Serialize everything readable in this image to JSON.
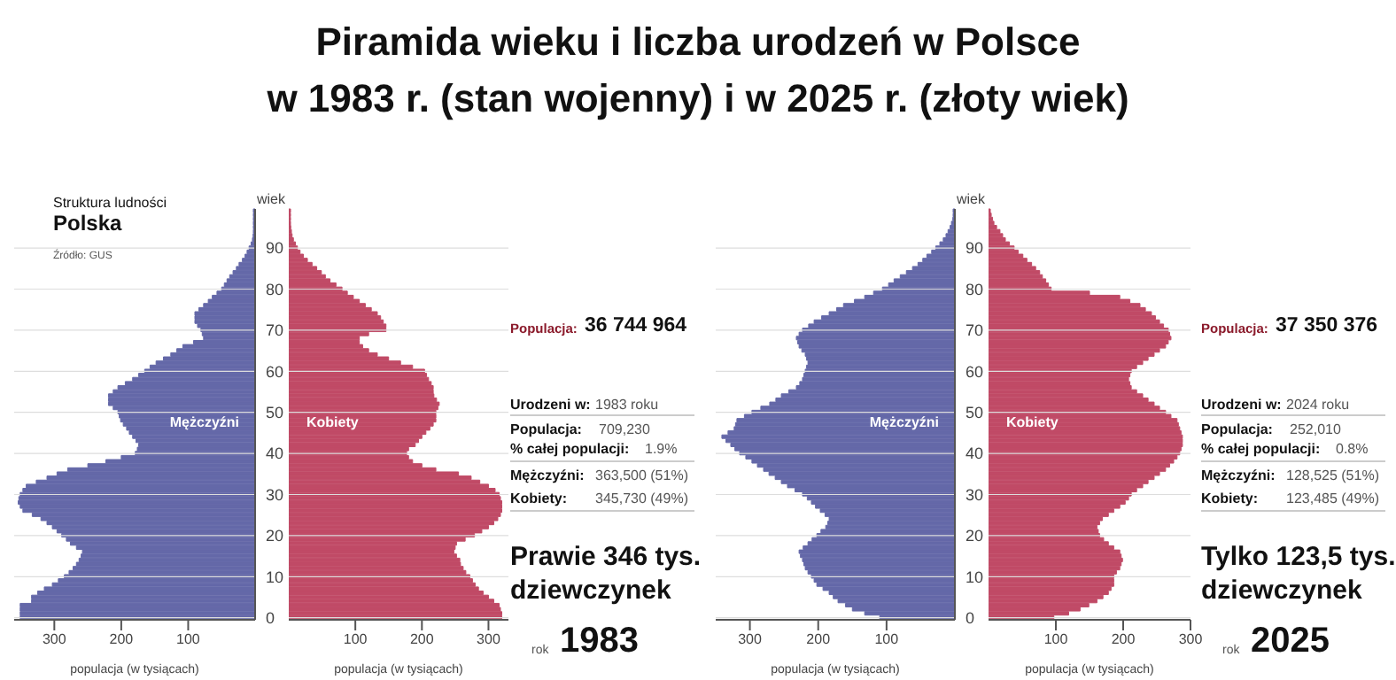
{
  "chart_data": [
    {
      "type": "bar",
      "orientation": "horizontal",
      "title": "Piramida wieku i liczba urodzeń w Polsce\nw 1983 r. (stan wojenny) i w 2025 r. (złoty wiek)",
      "xlabel": "populacja (w tysiącach)",
      "ylabel": "wiek",
      "xlim": [
        360,
        0
      ],
      "xticks": [
        300,
        200,
        100
      ],
      "grid": "y",
      "annotations": [
        "Struktura ludności",
        "Polska",
        "Źródło: GUS"
      ],
      "categories": [
        null,
        null,
        null,
        null,
        null,
        null,
        null,
        null,
        null,
        "90",
        null,
        null,
        null,
        null,
        null,
        null,
        null,
        null,
        null,
        "80",
        null,
        null,
        null,
        null,
        null,
        null,
        null,
        null,
        null,
        "70",
        null,
        null,
        null,
        null,
        null,
        null,
        null,
        null,
        null,
        "60",
        null,
        null,
        null,
        null,
        null,
        null,
        null,
        null,
        null,
        "50",
        null,
        null,
        null,
        null,
        null,
        null,
        null,
        null,
        null,
        "40",
        null,
        null,
        null,
        null,
        null,
        null,
        null,
        null,
        null,
        "30",
        null,
        null,
        null,
        null,
        null,
        null,
        null,
        null,
        null,
        "20",
        null,
        null,
        null,
        null,
        null,
        null,
        null,
        null,
        null,
        "10",
        null,
        null,
        null,
        null,
        null,
        null,
        null,
        null,
        null,
        "0"
      ],
      "series": [
        {
          "name": "Mężczyźni",
          "color": "#6468a8",
          "values": [
            1,
            1,
            1,
            1,
            1,
            2,
            3,
            4,
            6,
            9,
            12,
            15,
            19,
            24,
            28,
            33,
            38,
            42,
            46,
            50,
            57,
            64,
            70,
            77,
            84,
            90,
            90,
            90,
            86,
            81,
            79,
            77,
            92,
            108,
            117,
            126,
            137,
            148,
            157,
            165,
            174,
            183,
            194,
            205,
            212,
            219,
            219,
            219,
            212,
            205,
            203,
            201,
            197,
            192,
            188,
            183,
            178,
            174,
            176,
            179,
            200,
            223,
            250,
            280,
            296,
            311,
            327,
            342,
            347,
            351,
            353,
            354,
            351,
            347,
            333,
            320,
            311,
            303,
            296,
            289,
            282,
            276,
            267,
            258,
            260,
            263,
            267,
            272,
            278,
            285,
            294,
            303,
            315,
            325,
            334,
            334,
            351,
            351,
            351,
            351
          ]
        }
      ]
    },
    {
      "type": "bar",
      "orientation": "horizontal",
      "xlabel": "populacja (w tysiącach)",
      "xlim": [
        0,
        330
      ],
      "xticks": [
        100,
        200,
        300
      ],
      "grid": "y",
      "tick_labels": "x",
      "annotations": [
        "Populacja:",
        "36 744 964",
        "Urodzeni w:",
        "1983 roku",
        "Populacja:",
        "709,230",
        "% całej populacji:",
        "1.9%",
        "Mężczyźni:",
        "363,500 (51%)",
        "Kobiety:",
        "345,730 (49%)",
        "Prawie 346 tys. dziewczynek",
        "rok",
        "1983"
      ],
      "categories": [
        null,
        null,
        null,
        null,
        null,
        null,
        null,
        null,
        null,
        "90",
        null,
        null,
        null,
        null,
        null,
        null,
        null,
        null,
        null,
        "80",
        null,
        null,
        null,
        null,
        null,
        null,
        null,
        null,
        null,
        "70",
        null,
        null,
        null,
        null,
        null,
        null,
        null,
        null,
        null,
        "60",
        null,
        null,
        null,
        null,
        null,
        null,
        null,
        null,
        null,
        "50",
        null,
        null,
        null,
        null,
        null,
        null,
        null,
        null,
        null,
        "40",
        null,
        null,
        null,
        null,
        null,
        null,
        null,
        null,
        null,
        "30",
        null,
        null,
        null,
        null,
        null,
        null,
        null,
        null,
        null,
        "20",
        null,
        null,
        null,
        null,
        null,
        null,
        null,
        null,
        null,
        "10",
        null,
        null,
        null,
        null,
        null,
        null,
        null,
        null,
        null,
        "0"
      ],
      "series": [
        {
          "name": "Kobiety",
          "color": "#c04a66",
          "values": [
            1,
            1,
            1,
            2,
            3,
            4,
            5,
            7,
            10,
            13,
            17,
            22,
            28,
            35,
            42,
            49,
            55,
            62,
            71,
            80,
            88,
            97,
            106,
            115,
            124,
            133,
            138,
            142,
            146,
            146,
            120,
            106,
            106,
            111,
            120,
            133,
            150,
            168,
            186,
            204,
            207,
            210,
            214,
            217,
            217,
            218,
            222,
            226,
            224,
            221,
            221,
            221,
            217,
            212,
            206,
            200,
            195,
            190,
            180,
            177,
            180,
            186,
            200,
            221,
            255,
            274,
            287,
            300,
            310,
            316,
            318,
            320,
            320,
            320,
            318,
            314,
            308,
            300,
            290,
            279,
            265,
            252,
            250,
            248,
            252,
            257,
            258,
            262,
            266,
            272,
            276,
            280,
            285,
            292,
            300,
            308,
            316,
            318,
            320,
            320
          ]
        }
      ]
    },
    {
      "type": "bar",
      "orientation": "horizontal",
      "xlabel": "populacja (w tysiącach)",
      "ylabel": "wiek",
      "xlim": [
        350,
        0
      ],
      "xticks": [
        300,
        200,
        100
      ],
      "grid": "y",
      "categories": [
        null,
        null,
        null,
        null,
        null,
        null,
        null,
        null,
        null,
        "90",
        null,
        null,
        null,
        null,
        null,
        null,
        null,
        null,
        null,
        "80",
        null,
        null,
        null,
        null,
        null,
        null,
        null,
        null,
        null,
        "70",
        null,
        null,
        null,
        null,
        null,
        null,
        null,
        null,
        null,
        "60",
        null,
        null,
        null,
        null,
        null,
        null,
        null,
        null,
        null,
        "50",
        null,
        null,
        null,
        null,
        null,
        null,
        null,
        null,
        null,
        "40",
        null,
        null,
        null,
        null,
        null,
        null,
        null,
        null,
        null,
        "30",
        null,
        null,
        null,
        null,
        null,
        null,
        null,
        null,
        null,
        "20",
        null,
        null,
        null,
        null,
        null,
        null,
        null,
        null,
        null,
        "10",
        null,
        null,
        null,
        null,
        null,
        null,
        null,
        null,
        null,
        "0"
      ],
      "series": [
        {
          "name": "Mężczyźni",
          "color": "#6468a8",
          "values": [
            1,
            2,
            3,
            5,
            7,
            10,
            13,
            17,
            22,
            28,
            34,
            41,
            47,
            54,
            62,
            71,
            80,
            89,
            97,
            106,
            119,
            132,
            147,
            163,
            173,
            184,
            195,
            206,
            214,
            223,
            228,
            232,
            230,
            228,
            224,
            219,
            217,
            215,
            217,
            219,
            221,
            223,
            227,
            232,
            243,
            254,
            262,
            271,
            284,
            297,
            308,
            319,
            321,
            323,
            332,
            341,
            335,
            328,
            322,
            315,
            306,
            297,
            289,
            280,
            272,
            263,
            254,
            245,
            234,
            223,
            216,
            210,
            204,
            197,
            190,
            184,
            186,
            189,
            196,
            202,
            209,
            215,
            222,
            228,
            226,
            223,
            221,
            219,
            215,
            210,
            206,
            202,
            193,
            184,
            178,
            171,
            160,
            150,
            132,
            110
          ]
        }
      ]
    },
    {
      "type": "bar",
      "orientation": "horizontal",
      "xlabel": "populacja (w tysiącach)",
      "xlim": [
        0,
        300
      ],
      "xticks": [
        100,
        200,
        300
      ],
      "grid": "y",
      "tick_labels": "x",
      "annotations": [
        "Populacja:",
        "37 350 376",
        "Urodzeni w:",
        "2024 roku",
        "Populacja:",
        "252,010",
        "% całej populacji:",
        "0.8%",
        "Mężczyźni:",
        "128,525 (51%)",
        "Kobiety:",
        "123,485 (49%)",
        "Tylko 123,5 tys. dziewczynek",
        "rok",
        "2025"
      ],
      "categories": [
        null,
        null,
        null,
        null,
        null,
        null,
        null,
        null,
        null,
        "90",
        null,
        null,
        null,
        null,
        null,
        null,
        null,
        null,
        null,
        "80",
        null,
        null,
        null,
        null,
        null,
        null,
        null,
        null,
        null,
        "70",
        null,
        null,
        null,
        null,
        null,
        null,
        null,
        null,
        null,
        "60",
        null,
        null,
        null,
        null,
        null,
        null,
        null,
        null,
        null,
        "50",
        null,
        null,
        null,
        null,
        null,
        null,
        null,
        null,
        null,
        "40",
        null,
        null,
        null,
        null,
        null,
        null,
        null,
        null,
        null,
        "30",
        null,
        null,
        null,
        null,
        null,
        null,
        null,
        null,
        null,
        "20",
        null,
        null,
        null,
        null,
        null,
        null,
        null,
        null,
        null,
        "10",
        null,
        null,
        null,
        null,
        null,
        null,
        null,
        null,
        null,
        "0"
      ],
      "series": [
        {
          "name": "Kobiety",
          "color": "#c04a66",
          "values": [
            2,
            4,
            6,
            8,
            12,
            17,
            21,
            25,
            31,
            38,
            44,
            51,
            57,
            64,
            70,
            76,
            80,
            85,
            89,
            93,
            150,
            195,
            210,
            225,
            233,
            242,
            248,
            254,
            260,
            267,
            269,
            271,
            267,
            263,
            254,
            246,
            237,
            229,
            220,
            212,
            210,
            208,
            210,
            212,
            220,
            229,
            237,
            246,
            254,
            263,
            271,
            280,
            282,
            284,
            286,
            288,
            288,
            288,
            286,
            284,
            280,
            275,
            269,
            263,
            254,
            246,
            237,
            229,
            220,
            212,
            208,
            203,
            195,
            186,
            178,
            169,
            165,
            161,
            163,
            165,
            171,
            178,
            186,
            195,
            197,
            199,
            197,
            195,
            190,
            186,
            186,
            186,
            182,
            178,
            170,
            161,
            149,
            136,
            119,
            97
          ]
        }
      ]
    }
  ]
}
